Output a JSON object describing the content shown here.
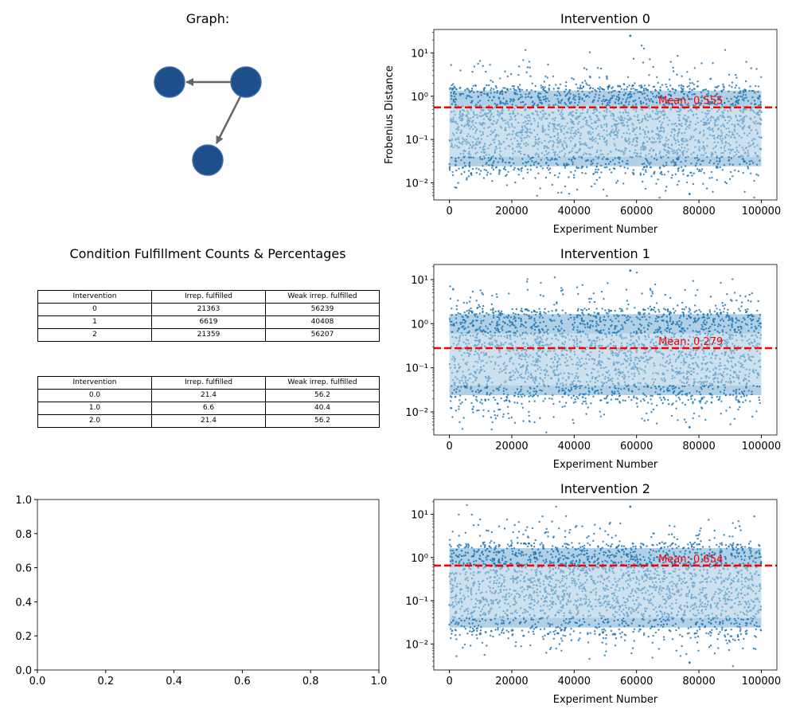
{
  "graph_panel": {
    "title": "Graph:"
  },
  "table_panel": {
    "title": "Condition Fulfillment Counts & Percentages",
    "counts_table": {
      "headers": [
        "Intervention",
        "Irrep. fulfilled",
        "Weak irrep. fulfilled"
      ],
      "rows": [
        [
          "0",
          "21363",
          "56239"
        ],
        [
          "1",
          "6619",
          "40408"
        ],
        [
          "2",
          "21359",
          "56207"
        ]
      ]
    },
    "percent_table": {
      "headers": [
        "Intervention",
        "Irrep. fulfilled",
        "Weak irrep. fulfilled"
      ],
      "rows": [
        [
          "0.0",
          "21.4",
          "56.2"
        ],
        [
          "1.0",
          "6.6",
          "40.4"
        ],
        [
          "2.0",
          "21.4",
          "56.2"
        ]
      ]
    }
  },
  "empty_axes": {
    "xticks": [
      "0.0",
      "0.2",
      "0.4",
      "0.6",
      "0.8",
      "1.0"
    ],
    "yticks": [
      "0.0",
      "0.2",
      "0.4",
      "0.6",
      "0.8",
      "1.0"
    ]
  },
  "colors": {
    "scatter": "#1f77b4",
    "mean_line": "#ff0000",
    "node": "#1f4e8c",
    "edge": "#666666"
  },
  "chart_data": [
    {
      "type": "scatter",
      "title": "Intervention 0",
      "xlabel": "Experiment Number",
      "ylabel": "Frobenius Distance",
      "yscale": "log",
      "xlim": [
        -5000,
        105000
      ],
      "ylim": [
        0.004,
        35
      ],
      "xticks": [
        0,
        20000,
        40000,
        60000,
        80000,
        100000
      ],
      "xtick_labels": [
        "0",
        "20000",
        "40000",
        "60000",
        "80000",
        "100000"
      ],
      "yticks": [
        0.01,
        0.1,
        1,
        10
      ],
      "ytick_labels": [
        "10⁻²",
        "10⁻¹",
        "10⁰",
        "10¹"
      ],
      "n_points": 100000,
      "band_y_range": [
        0.015,
        1.8
      ],
      "max_outlier": 25,
      "min_outlier": 0.0055,
      "mean": 0.555,
      "mean_label": "Mean: 0.555"
    },
    {
      "type": "scatter",
      "title": "Intervention 1",
      "xlabel": "Experiment Number",
      "ylabel": "",
      "yscale": "log",
      "xlim": [
        -5000,
        105000
      ],
      "ylim": [
        0.003,
        22
      ],
      "xticks": [
        0,
        20000,
        40000,
        60000,
        80000,
        100000
      ],
      "xtick_labels": [
        "0",
        "20000",
        "40000",
        "60000",
        "80000",
        "100000"
      ],
      "yticks": [
        0.01,
        0.1,
        1,
        10
      ],
      "ytick_labels": [
        "10⁻²",
        "10⁻¹",
        "10⁰",
        "10¹"
      ],
      "n_points": 100000,
      "band_y_range": [
        0.015,
        2.2
      ],
      "max_outlier": 16,
      "min_outlier": 0.0045,
      "mean": 0.279,
      "mean_label": "Mean: 0.279"
    },
    {
      "type": "scatter",
      "title": "Intervention 2",
      "xlabel": "Experiment Number",
      "ylabel": "",
      "yscale": "log",
      "xlim": [
        -5000,
        105000
      ],
      "ylim": [
        0.0025,
        22
      ],
      "xticks": [
        0,
        20000,
        40000,
        60000,
        80000,
        100000
      ],
      "xtick_labels": [
        "0",
        "20000",
        "40000",
        "60000",
        "80000",
        "100000"
      ],
      "yticks": [
        0.01,
        0.1,
        1,
        10
      ],
      "ytick_labels": [
        "10⁻²",
        "10⁻¹",
        "10⁰",
        "10¹"
      ],
      "n_points": 100000,
      "band_y_range": [
        0.015,
        2.2
      ],
      "max_outlier": 15,
      "min_outlier": 0.0037,
      "mean": 0.654,
      "mean_label": "Mean: 0.654"
    }
  ]
}
